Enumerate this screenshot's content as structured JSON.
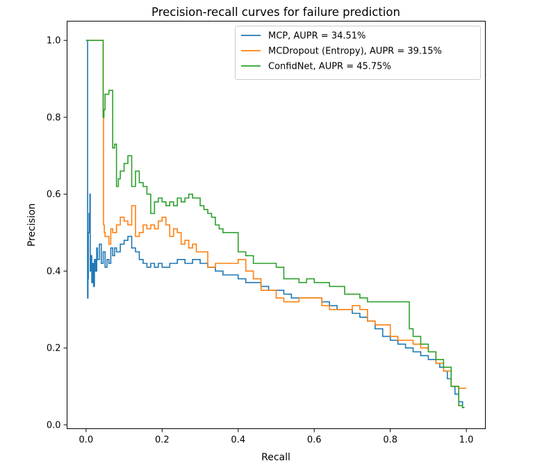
{
  "chart_data": {
    "type": "line",
    "title": "Precision-recall curves for failure prediction",
    "xlabel": "Recall",
    "ylabel": "Precision",
    "xlim": [
      -0.05,
      1.05
    ],
    "ylim": [
      -0.01,
      1.05
    ],
    "xticks": [
      0.0,
      0.2,
      0.4,
      0.6,
      0.8,
      1.0
    ],
    "xtick_labels": [
      "0.0",
      "0.2",
      "0.4",
      "0.6",
      "0.8",
      "1.0"
    ],
    "yticks": [
      0.0,
      0.2,
      0.4,
      0.6,
      0.8,
      1.0
    ],
    "ytick_labels": [
      "0.0",
      "0.2",
      "0.4",
      "0.6",
      "0.8",
      "1.0"
    ],
    "grid": false,
    "legend_position": "top-right",
    "series": [
      {
        "name": "MCP, AUPR = 34.51%",
        "color": "#1f77b4",
        "x": [
          0.0,
          0.004,
          0.005,
          0.006,
          0.008,
          0.01,
          0.011,
          0.012,
          0.015,
          0.018,
          0.02,
          0.022,
          0.025,
          0.028,
          0.03,
          0.035,
          0.04,
          0.045,
          0.05,
          0.055,
          0.06,
          0.065,
          0.07,
          0.075,
          0.08,
          0.09,
          0.1,
          0.11,
          0.12,
          0.13,
          0.14,
          0.15,
          0.16,
          0.17,
          0.18,
          0.19,
          0.2,
          0.22,
          0.24,
          0.26,
          0.28,
          0.3,
          0.32,
          0.34,
          0.36,
          0.38,
          0.4,
          0.42,
          0.44,
          0.46,
          0.48,
          0.5,
          0.52,
          0.54,
          0.56,
          0.58,
          0.6,
          0.62,
          0.64,
          0.66,
          0.68,
          0.7,
          0.72,
          0.74,
          0.76,
          0.78,
          0.8,
          0.82,
          0.84,
          0.86,
          0.88,
          0.9,
          0.92,
          0.93,
          0.94,
          0.95,
          0.96,
          0.97,
          0.98,
          0.99,
          0.995
        ],
        "y": [
          1.0,
          1.0,
          0.33,
          0.38,
          0.5,
          0.55,
          0.6,
          0.4,
          0.44,
          0.37,
          0.42,
          0.36,
          0.43,
          0.4,
          0.46,
          0.43,
          0.47,
          0.42,
          0.45,
          0.41,
          0.43,
          0.42,
          0.46,
          0.44,
          0.46,
          0.45,
          0.47,
          0.48,
          0.49,
          0.46,
          0.45,
          0.43,
          0.42,
          0.41,
          0.42,
          0.41,
          0.42,
          0.41,
          0.42,
          0.43,
          0.42,
          0.43,
          0.42,
          0.41,
          0.4,
          0.39,
          0.39,
          0.38,
          0.37,
          0.37,
          0.36,
          0.35,
          0.35,
          0.34,
          0.33,
          0.33,
          0.33,
          0.33,
          0.32,
          0.31,
          0.3,
          0.3,
          0.29,
          0.28,
          0.27,
          0.25,
          0.23,
          0.22,
          0.21,
          0.2,
          0.19,
          0.18,
          0.17,
          0.16,
          0.15,
          0.14,
          0.12,
          0.1,
          0.08,
          0.06,
          0.045
        ]
      },
      {
        "name": "MCDropout (Entropy), AUPR = 39.15%",
        "color": "#ff7f0e",
        "x": [
          0.0,
          0.045,
          0.046,
          0.048,
          0.049,
          0.05,
          0.06,
          0.065,
          0.07,
          0.08,
          0.09,
          0.1,
          0.11,
          0.12,
          0.13,
          0.14,
          0.15,
          0.16,
          0.17,
          0.18,
          0.19,
          0.2,
          0.21,
          0.22,
          0.23,
          0.24,
          0.25,
          0.26,
          0.27,
          0.28,
          0.29,
          0.3,
          0.32,
          0.34,
          0.36,
          0.38,
          0.4,
          0.42,
          0.44,
          0.46,
          0.48,
          0.5,
          0.52,
          0.54,
          0.56,
          0.58,
          0.6,
          0.62,
          0.64,
          0.66,
          0.68,
          0.7,
          0.72,
          0.74,
          0.76,
          0.78,
          0.8,
          0.82,
          0.84,
          0.86,
          0.88,
          0.9,
          0.92,
          0.94,
          0.96,
          0.98,
          1.0
        ],
        "y": [
          1.0,
          1.0,
          0.8,
          0.52,
          0.5,
          0.5,
          0.49,
          0.47,
          0.51,
          0.5,
          0.52,
          0.54,
          0.53,
          0.52,
          0.57,
          0.49,
          0.5,
          0.52,
          0.51,
          0.52,
          0.51,
          0.53,
          0.54,
          0.52,
          0.49,
          0.51,
          0.5,
          0.47,
          0.48,
          0.46,
          0.47,
          0.45,
          0.45,
          0.41,
          0.42,
          0.42,
          0.42,
          0.43,
          0.4,
          0.38,
          0.35,
          0.35,
          0.33,
          0.32,
          0.32,
          0.33,
          0.33,
          0.33,
          0.31,
          0.3,
          0.3,
          0.3,
          0.31,
          0.3,
          0.27,
          0.26,
          0.26,
          0.23,
          0.22,
          0.22,
          0.21,
          0.2,
          0.19,
          0.16,
          0.14,
          0.1,
          0.095
        ]
      },
      {
        "name": "ConfidNet, AUPR = 45.75%",
        "color": "#2ca02c",
        "x": [
          0.0,
          0.045,
          0.047,
          0.05,
          0.06,
          0.07,
          0.075,
          0.08,
          0.085,
          0.09,
          0.1,
          0.11,
          0.12,
          0.13,
          0.14,
          0.15,
          0.16,
          0.17,
          0.18,
          0.19,
          0.2,
          0.21,
          0.22,
          0.23,
          0.24,
          0.25,
          0.26,
          0.27,
          0.28,
          0.29,
          0.3,
          0.31,
          0.32,
          0.33,
          0.34,
          0.35,
          0.36,
          0.37,
          0.38,
          0.39,
          0.4,
          0.42,
          0.44,
          0.46,
          0.48,
          0.5,
          0.52,
          0.54,
          0.56,
          0.58,
          0.6,
          0.62,
          0.64,
          0.66,
          0.68,
          0.7,
          0.72,
          0.74,
          0.76,
          0.78,
          0.8,
          0.82,
          0.84,
          0.85,
          0.86,
          0.88,
          0.9,
          0.92,
          0.94,
          0.96,
          0.98,
          0.99,
          0.995
        ],
        "y": [
          1.0,
          1.0,
          0.8,
          0.82,
          0.86,
          0.87,
          0.72,
          0.73,
          0.62,
          0.64,
          0.66,
          0.68,
          0.7,
          0.62,
          0.66,
          0.63,
          0.62,
          0.6,
          0.55,
          0.58,
          0.59,
          0.58,
          0.57,
          0.58,
          0.57,
          0.59,
          0.58,
          0.59,
          0.6,
          0.59,
          0.59,
          0.57,
          0.56,
          0.55,
          0.54,
          0.52,
          0.51,
          0.5,
          0.5,
          0.5,
          0.5,
          0.45,
          0.44,
          0.42,
          0.42,
          0.42,
          0.41,
          0.38,
          0.38,
          0.37,
          0.38,
          0.37,
          0.37,
          0.36,
          0.36,
          0.34,
          0.34,
          0.33,
          0.32,
          0.32,
          0.32,
          0.32,
          0.32,
          0.32,
          0.25,
          0.23,
          0.21,
          0.19,
          0.17,
          0.15,
          0.1,
          0.05,
          0.045
        ]
      }
    ]
  }
}
